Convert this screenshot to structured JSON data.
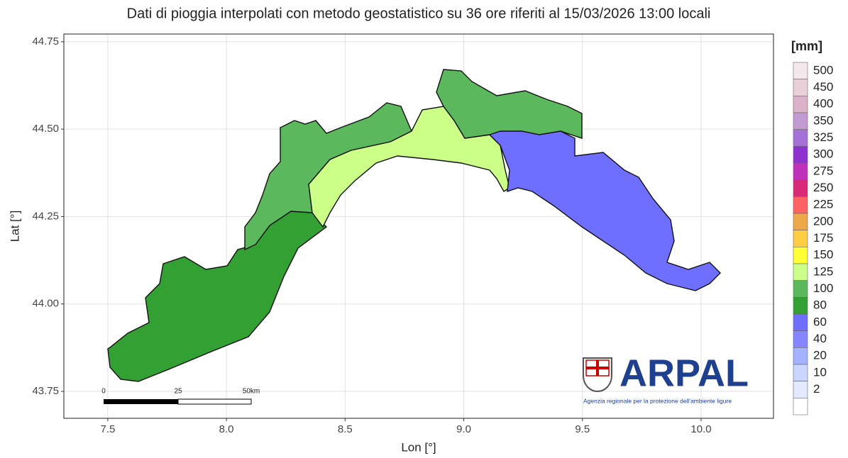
{
  "chart_data": {
    "type": "map",
    "title": "Dati di pioggia interpolati con metodo geostatistico su 36 ore riferiti al 15/03/2026 13:00 locali",
    "x_label": "Lon [°]",
    "y_label": "Lat [°]",
    "xlim": [
      7.315,
      10.305
    ],
    "ylim": [
      43.673,
      44.772
    ],
    "xticks": [
      7.5,
      {
        "value": 8.0,
        "label": "8.0"
      },
      8.5,
      {
        "value": 9.0,
        "label": "9.0"
      },
      9.5,
      {
        "value": 10.0,
        "label": "10.0"
      }
    ],
    "yticks": [
      43.75,
      {
        "value": 44.0,
        "label": "44.00"
      },
      44.25,
      {
        "value": 44.5,
        "label": "44.50"
      },
      44.75
    ],
    "grid": true,
    "legend": {
      "title": "[mm]",
      "labels": [
        "500",
        "450",
        "400",
        "350",
        "325",
        "300",
        "275",
        "250",
        "225",
        "200",
        "175",
        "150",
        "125",
        "100",
        "80",
        "60",
        "40",
        "20",
        "10",
        "2",
        null
      ],
      "colors": [
        "#f4e8ec",
        "#e8cfd8",
        "#dcb2c8",
        "#c49ad2",
        "#a571d8",
        "#8f30d0",
        "#c031bd",
        "#d82a78",
        "#ff6262",
        "#eea84a",
        "#ffcc44",
        "#ffff33",
        "#ccff88",
        "#5cb85c",
        "#33a033",
        "#6f6fff",
        "#8585ff",
        "#a3b3ff",
        "#cad6ff",
        "#e3eaff",
        "#ffffff"
      ]
    },
    "scale_bar": {
      "labels": [
        "0",
        "25",
        "50km"
      ]
    },
    "logo": {
      "name": "ARPAL",
      "subtitle": "Agenzia regionale per la protezione dell'ambiente ligure"
    }
  }
}
